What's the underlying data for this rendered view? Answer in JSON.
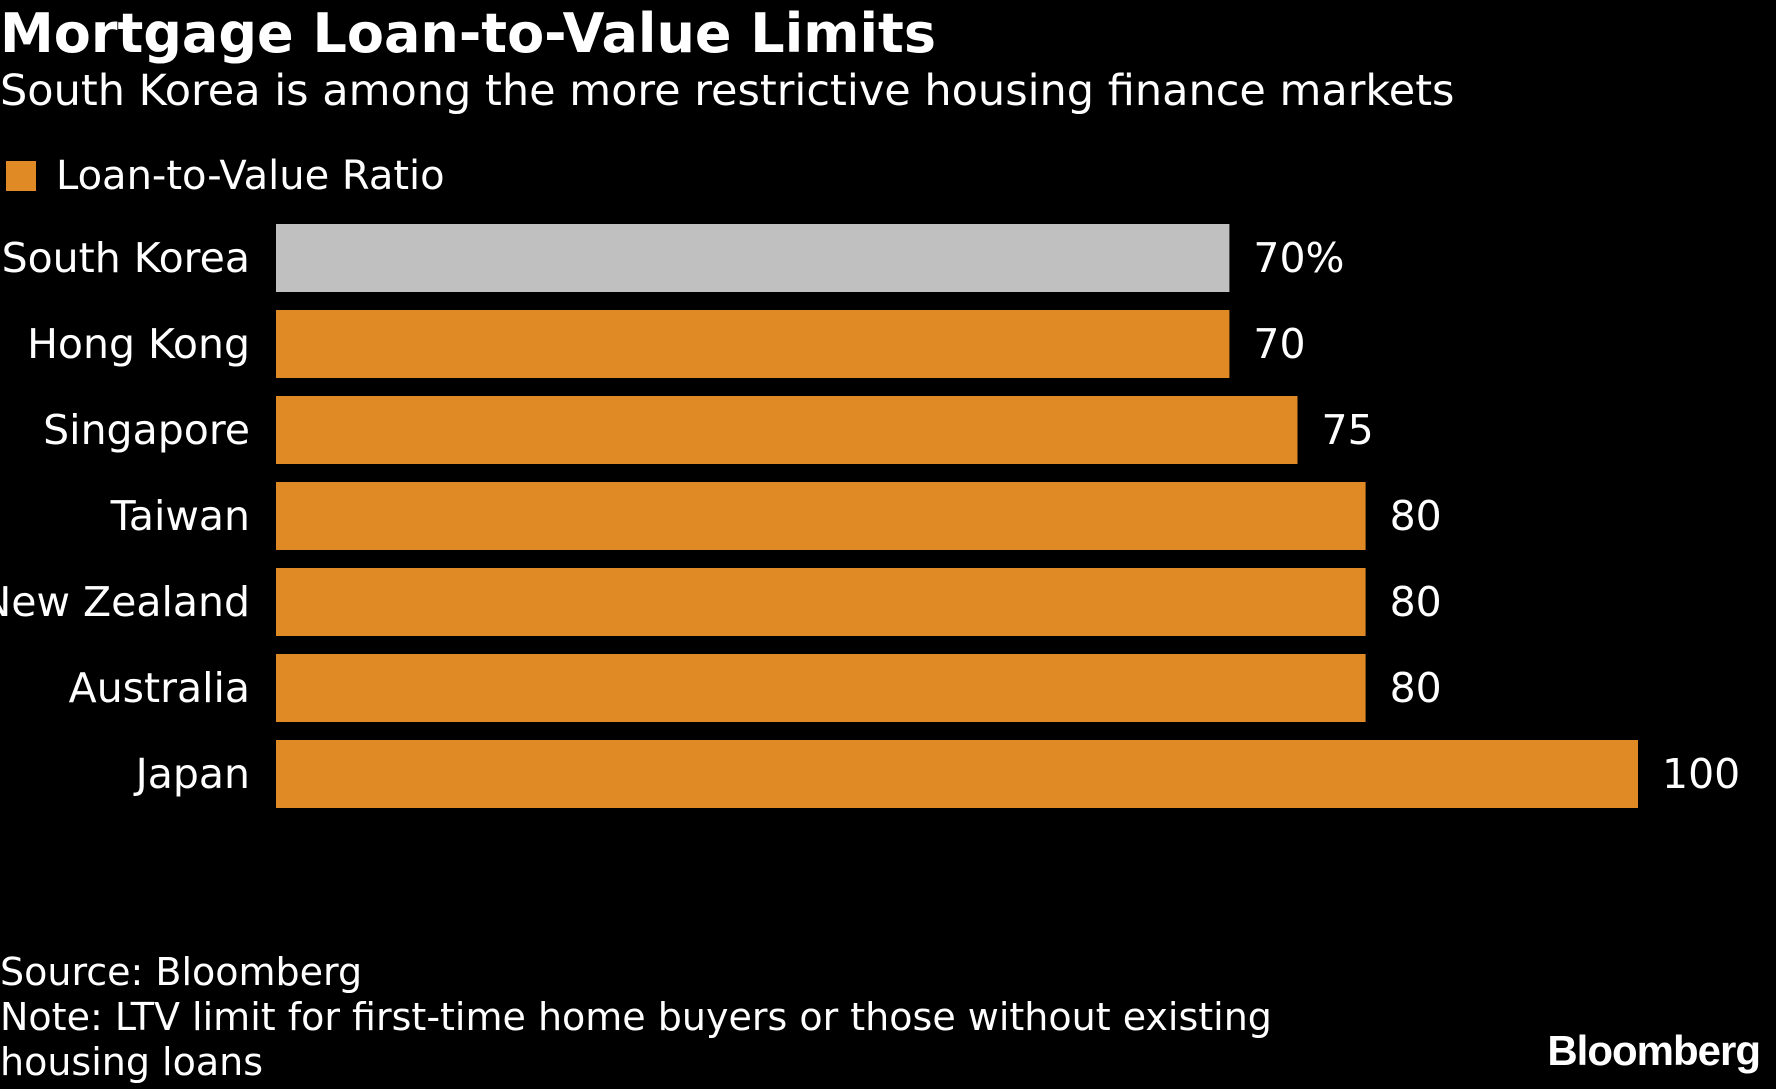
{
  "chart_data": {
    "type": "bar",
    "orientation": "horizontal",
    "title": "Mortgage Loan-to-Value Limits",
    "subtitle": "South Korea is among the more restrictive housing finance markets",
    "legend": [
      {
        "label": "Loan-to-Value Ratio",
        "color": "#e08a26"
      }
    ],
    "legend_position": "top-left",
    "categories": [
      "South Korea",
      "Hong Kong",
      "Singapore",
      "Taiwan",
      "New Zealand",
      "Australia",
      "Japan"
    ],
    "values": [
      70,
      70,
      75,
      80,
      80,
      80,
      100
    ],
    "value_labels": [
      "70%",
      "70",
      "75",
      "80",
      "80",
      "80",
      "100"
    ],
    "bar_colors": [
      "#c0c0c0",
      "#e08a26",
      "#e08a26",
      "#e08a26",
      "#e08a26",
      "#e08a26",
      "#e08a26"
    ],
    "xlim": [
      0,
      100
    ],
    "grid": false,
    "xlabel": "",
    "ylabel": ""
  },
  "footer": {
    "source": "Source: Bloomberg",
    "note": "Note: LTV limit for first-time home buyers or those without existing",
    "note_cont": "housing loans"
  },
  "brand": {
    "logo": "Bloomberg"
  },
  "colors": {
    "background": "#000000",
    "text": "#ffffff",
    "accent": "#e08a26",
    "highlight": "#c0c0c0"
  }
}
